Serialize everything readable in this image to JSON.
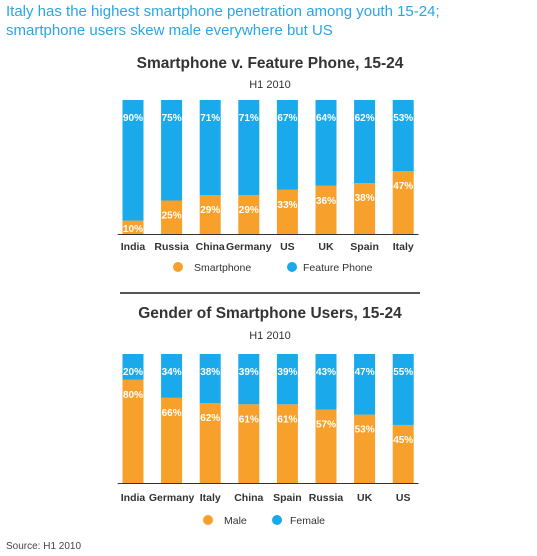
{
  "headline": {
    "line1": "Italy has the highest smartphone penetration among youth 15-24;",
    "line2": "smartphone users skew male everywhere but US"
  },
  "source": "Source: H1 2010",
  "colors": {
    "orange": "#f7a12c",
    "blue": "#1aa9ea"
  },
  "chart_data": [
    {
      "type": "bar",
      "stacked": true,
      "percent": true,
      "title": "Smartphone v. Feature Phone, 15-24",
      "subtitle": "H1 2010",
      "categories": [
        "India",
        "Russia",
        "China",
        "Germany",
        "US",
        "UK",
        "Spain",
        "Italy"
      ],
      "series": [
        {
          "name": "Smartphone",
          "color": "#f7a12c",
          "values": [
            10,
            25,
            29,
            29,
            33,
            36,
            38,
            47
          ]
        },
        {
          "name": "Feature Phone",
          "color": "#1aa9ea",
          "values": [
            90,
            75,
            71,
            71,
            67,
            64,
            62,
            53
          ]
        }
      ],
      "ylim": [
        0,
        100
      ],
      "grid": false,
      "legend": "bottom"
    },
    {
      "type": "bar",
      "stacked": true,
      "percent": true,
      "title": "Gender of Smartphone Users, 15-24",
      "subtitle": "H1 2010",
      "categories": [
        "India",
        "Germany",
        "Italy",
        "China",
        "Spain",
        "Russia",
        "UK",
        "US"
      ],
      "series": [
        {
          "name": "Male",
          "color": "#f7a12c",
          "values": [
            80,
            66,
            62,
            61,
            61,
            57,
            53,
            45
          ]
        },
        {
          "name": "Female",
          "color": "#1aa9ea",
          "values": [
            20,
            34,
            38,
            39,
            39,
            43,
            47,
            55
          ]
        }
      ],
      "ylim": [
        0,
        100
      ],
      "grid": false,
      "legend": "bottom"
    }
  ]
}
